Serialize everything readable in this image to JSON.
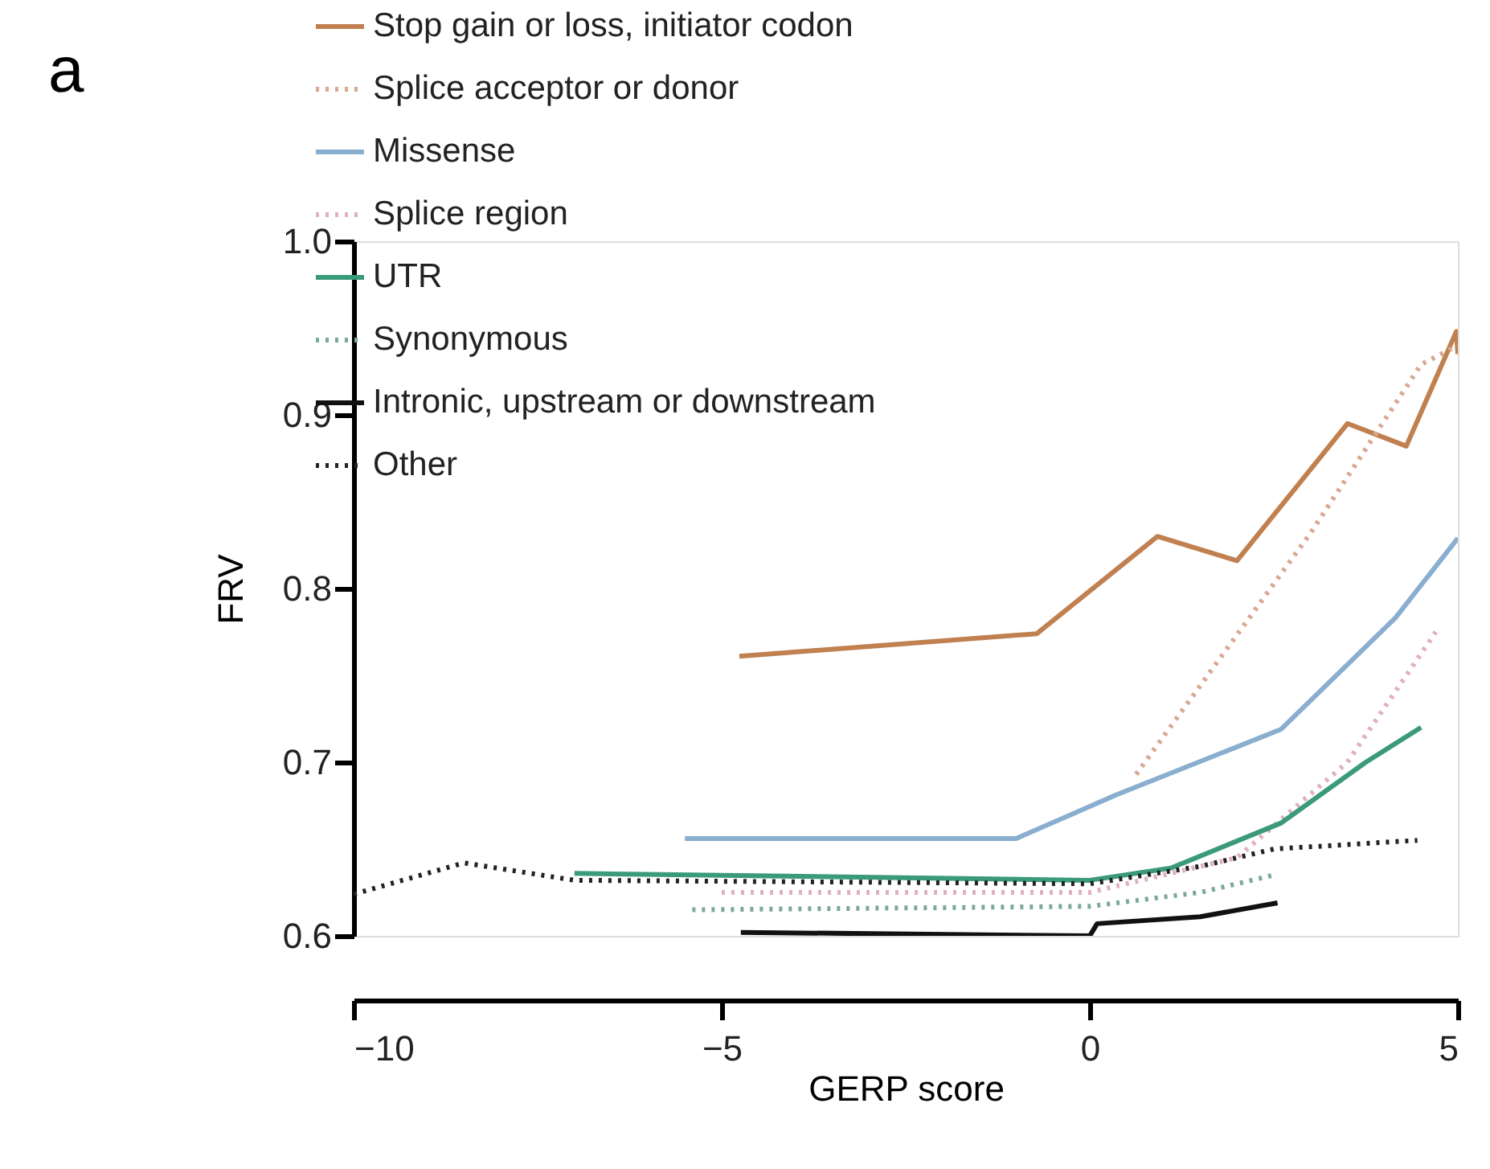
{
  "chart_data": {
    "type": "line",
    "title": "a",
    "xlabel": "GERP score",
    "ylabel": "FRV",
    "xlim": [
      -10,
      5
    ],
    "xticks": [
      {
        "value": -10,
        "label": "−10"
      },
      {
        "value": -5,
        "label": "−5"
      },
      0,
      5
    ],
    "ylim": [
      0.6,
      1.0
    ],
    "yticks": [
      {
        "value": 0.6,
        "label": "0.6"
      },
      {
        "value": 0.7,
        "label": "0.7"
      },
      {
        "value": 0.8,
        "label": "0.8"
      },
      {
        "value": 0.9,
        "label": "0.9"
      },
      {
        "value": 1.0,
        "label": "1.0"
      }
    ],
    "grid": false,
    "legend": "top left",
    "marker": "none",
    "series": [
      {
        "name": "Stop gain or loss, initiator codon",
        "color": "#c08050",
        "line_style": "solid",
        "x": [
          -4.76,
          -0.72,
          0.92,
          2.0,
          3.5,
          4.3,
          4.98,
          5.0
        ],
        "values": [
          0.761,
          0.774,
          0.83,
          0.816,
          0.895,
          0.882,
          0.948,
          0.935
        ]
      },
      {
        "name": "Splice acceptor or donor",
        "color": "#d8a890",
        "line_style": "dotted",
        "x": [
          0.63,
          3.0,
          4.5,
          5.0
        ],
        "values": [
          0.693,
          0.832,
          0.929,
          0.94
        ]
      },
      {
        "name": "Missense",
        "color": "#8aaed0",
        "line_style": "solid",
        "x": [
          -5.5,
          -1.0,
          0.35,
          2.6,
          4.15,
          5.0
        ],
        "values": [
          0.656,
          0.656,
          0.681,
          0.719,
          0.783,
          0.829
        ]
      },
      {
        "name": "Splice region",
        "color": "#e0b0c0",
        "line_style": "dotted",
        "x": [
          -5.0,
          0.0,
          2.0,
          3.5,
          4.7
        ],
        "values": [
          0.625,
          0.625,
          0.645,
          0.7,
          0.775
        ]
      },
      {
        "name": "UTR",
        "color": "#3a9a7a",
        "line_style": "solid",
        "x": [
          -7.0,
          0.0,
          1.1,
          2.6,
          3.75,
          4.5
        ],
        "values": [
          0.636,
          0.632,
          0.639,
          0.665,
          0.7,
          0.72
        ]
      },
      {
        "name": "Synonymous",
        "color": "#7aa89a",
        "line_style": "dotted",
        "x": [
          -5.4,
          0.0,
          1.5,
          2.5
        ],
        "values": [
          0.615,
          0.617,
          0.625,
          0.635
        ]
      },
      {
        "name": "Intronic, upstream or downstream",
        "color": "#111111",
        "line_style": "solid",
        "x": [
          -4.74,
          0.0,
          0.1,
          1.5,
          2.55
        ],
        "values": [
          0.602,
          0.6,
          0.607,
          0.611,
          0.619
        ]
      },
      {
        "name": "Other",
        "color": "#222222",
        "line_style": "dotted",
        "x": [
          -10.0,
          -8.5,
          -7.0,
          0.0,
          1.5,
          2.5,
          4.45
        ],
        "values": [
          0.624,
          0.642,
          0.632,
          0.63,
          0.64,
          0.65,
          0.655
        ]
      }
    ]
  }
}
